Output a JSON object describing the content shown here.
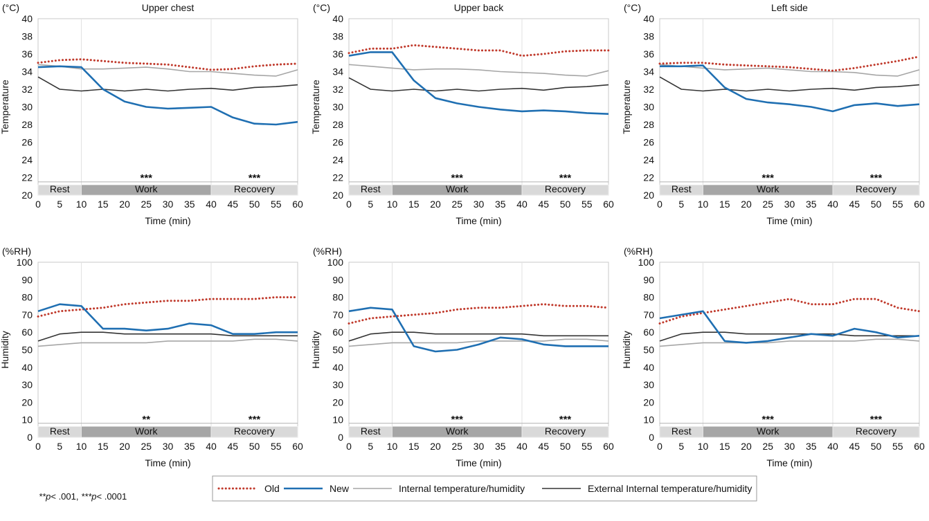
{
  "x_ticks": [
    "0",
    "5",
    "10",
    "15",
    "20",
    "25",
    "30",
    "35",
    "40",
    "45",
    "50",
    "55",
    "60"
  ],
  "xlabel": "Time (min)",
  "phases": [
    {
      "label": "Rest",
      "start": 0,
      "end": 10,
      "color": "#d9d9d9"
    },
    {
      "label": "Work",
      "start": 10,
      "end": 40,
      "color": "#a6a6a6"
    },
    {
      "label": "Recovery",
      "start": 40,
      "end": 60,
      "color": "#d9d9d9"
    }
  ],
  "footnote": {
    "p1": "**p",
    "t1": "< .001, ",
    "p2": "***p",
    "t2": "< .0001"
  },
  "legend": [
    {
      "label": "Old",
      "color": "#c0392b",
      "style": "dotted"
    },
    {
      "label": "New",
      "color": "#1f6fb2",
      "style": "solid-thick"
    },
    {
      "label": "Internal temperature/humidity",
      "color": "#a6a6a6",
      "style": "solid"
    },
    {
      "label": "External Internal temperature/humidity",
      "color": "#333333",
      "style": "solid"
    }
  ],
  "chart_data": [
    {
      "type": "line",
      "title": "Upper chest",
      "unit": "(°C)",
      "ylabel": "Temperature",
      "ylim": [
        20,
        40
      ],
      "y_ticks": [
        "20",
        "22",
        "24",
        "26",
        "28",
        "30",
        "32",
        "34",
        "36",
        "38",
        "40"
      ],
      "sig_y": 21.5,
      "significance": [
        {
          "text": "***",
          "x": 25
        },
        {
          "text": "***",
          "x": 50
        }
      ],
      "x": [
        0,
        5,
        10,
        15,
        20,
        25,
        30,
        35,
        40,
        45,
        50,
        55,
        60
      ],
      "series": [
        {
          "name": "Old",
          "values": [
            35.0,
            35.3,
            35.4,
            35.2,
            35.0,
            34.9,
            34.8,
            34.5,
            34.2,
            34.3,
            34.6,
            34.8,
            34.9
          ]
        },
        {
          "name": "New",
          "values": [
            34.5,
            34.6,
            34.5,
            32.0,
            30.6,
            30.0,
            29.8,
            29.9,
            30.0,
            28.8,
            28.1,
            28.0,
            28.3
          ]
        },
        {
          "name": "Internal temperature/humidity",
          "values": [
            34.8,
            34.6,
            34.3,
            34.3,
            34.4,
            34.5,
            34.3,
            34.0,
            34.0,
            33.8,
            33.6,
            33.5,
            34.2
          ]
        },
        {
          "name": "External Internal temperature/humidity",
          "values": [
            33.4,
            32.0,
            31.8,
            32.0,
            31.8,
            32.0,
            31.8,
            32.0,
            32.1,
            31.9,
            32.2,
            32.3,
            32.5
          ]
        }
      ]
    },
    {
      "type": "line",
      "title": "Upper back",
      "unit": "(°C)",
      "ylabel": "Temperature",
      "ylim": [
        20,
        40
      ],
      "y_ticks": [
        "20",
        "22",
        "24",
        "26",
        "28",
        "30",
        "32",
        "34",
        "36",
        "38",
        "40"
      ],
      "sig_y": 21.5,
      "significance": [
        {
          "text": "***",
          "x": 25
        },
        {
          "text": "***",
          "x": 50
        }
      ],
      "x": [
        0,
        5,
        10,
        15,
        20,
        25,
        30,
        35,
        40,
        45,
        50,
        55,
        60
      ],
      "series": [
        {
          "name": "Old",
          "values": [
            36.1,
            36.6,
            36.6,
            37.0,
            36.8,
            36.6,
            36.4,
            36.4,
            35.8,
            36.0,
            36.3,
            36.4,
            36.4
          ]
        },
        {
          "name": "New",
          "values": [
            35.8,
            36.2,
            36.2,
            33.0,
            31.0,
            30.4,
            30.0,
            29.7,
            29.5,
            29.6,
            29.5,
            29.3,
            29.2
          ]
        },
        {
          "name": "Internal temperature/humidity",
          "values": [
            34.8,
            34.6,
            34.4,
            34.2,
            34.3,
            34.3,
            34.2,
            34.0,
            33.9,
            33.8,
            33.6,
            33.5,
            34.1
          ]
        },
        {
          "name": "External Internal temperature/humidity",
          "values": [
            33.3,
            32.0,
            31.8,
            32.0,
            31.8,
            32.0,
            31.8,
            32.0,
            32.1,
            31.9,
            32.2,
            32.3,
            32.5
          ]
        }
      ]
    },
    {
      "type": "line",
      "title": "Left side",
      "unit": "(°C)",
      "ylabel": "Temperature",
      "ylim": [
        20,
        40
      ],
      "y_ticks": [
        "20",
        "22",
        "24",
        "26",
        "28",
        "30",
        "32",
        "34",
        "36",
        "38",
        "40"
      ],
      "sig_y": 21.5,
      "significance": [
        {
          "text": "***",
          "x": 25
        },
        {
          "text": "***",
          "x": 50
        }
      ],
      "x": [
        0,
        5,
        10,
        15,
        20,
        25,
        30,
        35,
        40,
        45,
        50,
        55,
        60
      ],
      "series": [
        {
          "name": "Old",
          "values": [
            34.9,
            35.0,
            35.0,
            34.8,
            34.7,
            34.6,
            34.5,
            34.3,
            34.1,
            34.4,
            34.8,
            35.2,
            35.7
          ]
        },
        {
          "name": "New",
          "values": [
            34.6,
            34.6,
            34.7,
            32.2,
            30.9,
            30.5,
            30.3,
            30.0,
            29.5,
            30.2,
            30.4,
            30.1,
            30.3
          ]
        },
        {
          "name": "Internal temperature/humidity",
          "values": [
            34.8,
            34.6,
            34.4,
            34.2,
            34.3,
            34.4,
            34.2,
            34.0,
            34.0,
            33.9,
            33.6,
            33.5,
            34.2
          ]
        },
        {
          "name": "External Internal temperature/humidity",
          "values": [
            33.4,
            32.0,
            31.8,
            32.0,
            31.8,
            32.0,
            31.8,
            32.0,
            32.1,
            31.9,
            32.2,
            32.3,
            32.5
          ]
        }
      ]
    },
    {
      "type": "line",
      "title": "",
      "unit": "(%RH)",
      "ylabel": "Humidity",
      "ylim": [
        0,
        100
      ],
      "y_ticks": [
        "0",
        "10",
        "20",
        "30",
        "40",
        "50",
        "60",
        "70",
        "80",
        "90",
        "100"
      ],
      "sig_y": 8,
      "significance": [
        {
          "text": "**",
          "x": 25
        },
        {
          "text": "***",
          "x": 50
        }
      ],
      "x": [
        0,
        5,
        10,
        15,
        20,
        25,
        30,
        35,
        40,
        45,
        50,
        55,
        60
      ],
      "series": [
        {
          "name": "Old",
          "values": [
            69,
            72,
            73,
            74,
            76,
            77,
            78,
            78,
            79,
            79,
            79,
            80,
            80
          ]
        },
        {
          "name": "New",
          "values": [
            72,
            76,
            75,
            62,
            62,
            61,
            62,
            65,
            64,
            59,
            59,
            60,
            60
          ]
        },
        {
          "name": "Internal temperature/humidity",
          "values": [
            52,
            53,
            54,
            54,
            54,
            54,
            55,
            55,
            55,
            55,
            56,
            56,
            55
          ]
        },
        {
          "name": "External Internal temperature/humidity",
          "values": [
            55,
            59,
            60,
            60,
            59,
            59,
            59,
            59,
            59,
            58,
            58,
            58,
            58
          ]
        }
      ]
    },
    {
      "type": "line",
      "title": "",
      "unit": "(%RH)",
      "ylabel": "Humidity",
      "ylim": [
        0,
        100
      ],
      "y_ticks": [
        "0",
        "10",
        "20",
        "30",
        "40",
        "50",
        "60",
        "70",
        "80",
        "90",
        "100"
      ],
      "sig_y": 8,
      "significance": [
        {
          "text": "***",
          "x": 25
        },
        {
          "text": "***",
          "x": 50
        }
      ],
      "x": [
        0,
        5,
        10,
        15,
        20,
        25,
        30,
        35,
        40,
        45,
        50,
        55,
        60
      ],
      "series": [
        {
          "name": "Old",
          "values": [
            65,
            68,
            69,
            70,
            71,
            73,
            74,
            74,
            75,
            76,
            75,
            75,
            74
          ]
        },
        {
          "name": "New",
          "values": [
            72,
            74,
            73,
            52,
            49,
            50,
            53,
            57,
            56,
            53,
            52,
            52,
            52
          ]
        },
        {
          "name": "Internal temperature/humidity",
          "values": [
            52,
            53,
            54,
            54,
            54,
            54,
            55,
            55,
            55,
            55,
            56,
            56,
            55
          ]
        },
        {
          "name": "External Internal temperature/humidity",
          "values": [
            55,
            59,
            60,
            60,
            59,
            59,
            59,
            59,
            59,
            58,
            58,
            58,
            58
          ]
        }
      ]
    },
    {
      "type": "line",
      "title": "",
      "unit": "(%RH)",
      "ylabel": "Humidity",
      "ylim": [
        0,
        100
      ],
      "y_ticks": [
        "0",
        "10",
        "20",
        "30",
        "40",
        "50",
        "60",
        "70",
        "80",
        "90",
        "100"
      ],
      "sig_y": 8,
      "significance": [
        {
          "text": "***",
          "x": 25
        },
        {
          "text": "***",
          "x": 50
        }
      ],
      "x": [
        0,
        5,
        10,
        15,
        20,
        25,
        30,
        35,
        40,
        45,
        50,
        55,
        60
      ],
      "series": [
        {
          "name": "Old",
          "values": [
            65,
            69,
            71,
            73,
            75,
            77,
            79,
            76,
            76,
            79,
            79,
            74,
            72
          ]
        },
        {
          "name": "New",
          "values": [
            68,
            70,
            72,
            55,
            54,
            55,
            57,
            59,
            58,
            62,
            60,
            57,
            58
          ]
        },
        {
          "name": "Internal temperature/humidity",
          "values": [
            52,
            53,
            54,
            54,
            54,
            54,
            55,
            55,
            55,
            55,
            56,
            56,
            55
          ]
        },
        {
          "name": "External Internal temperature/humidity",
          "values": [
            55,
            59,
            60,
            60,
            59,
            59,
            59,
            59,
            59,
            58,
            58,
            58,
            58
          ]
        }
      ]
    }
  ]
}
